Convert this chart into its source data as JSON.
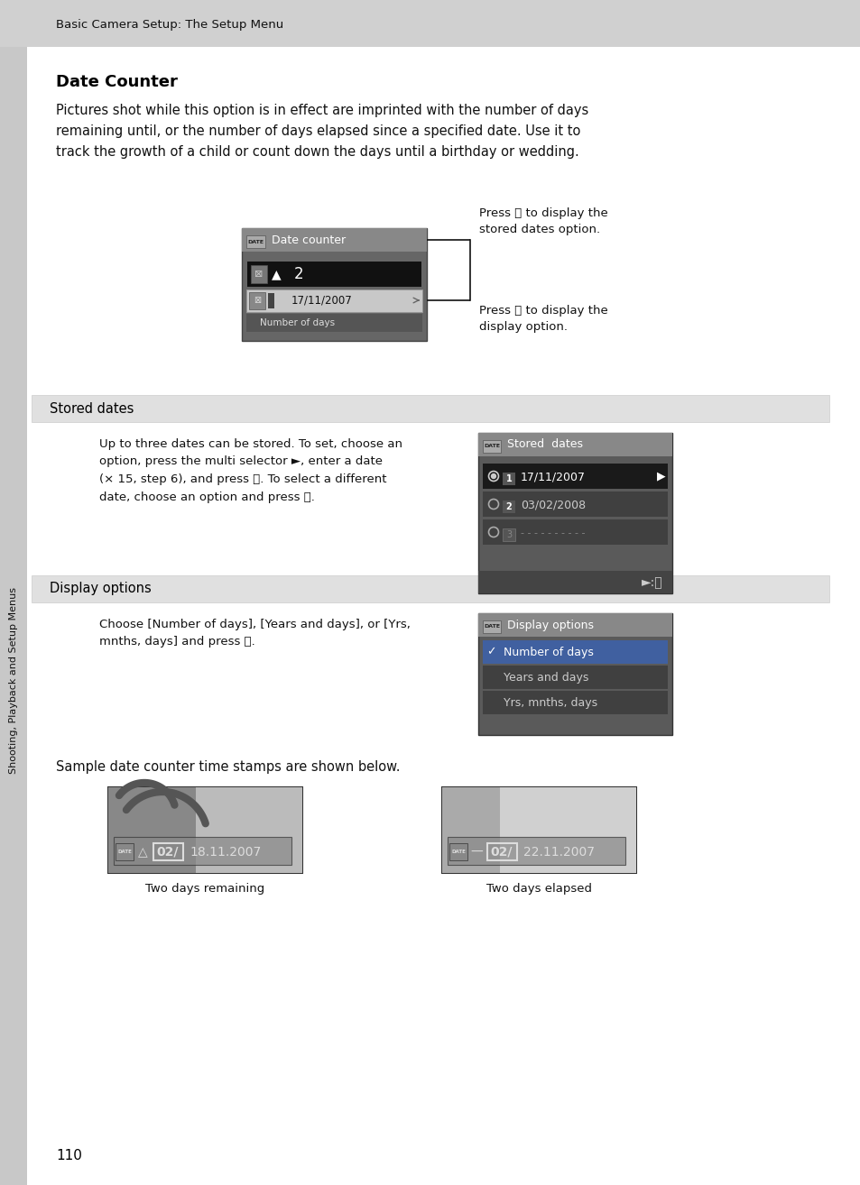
{
  "page_bg": "#ffffff",
  "header_bg": "#d0d0d0",
  "header_text": "Basic Camera Setup: The Setup Menu",
  "header_fontsize": 9.5,
  "title": "Date Counter",
  "title_fontsize": 13,
  "body_text1": "Pictures shot while this option is in effect are imprinted with the number of days\nremaining until, or the number of days elapsed since a specified date. Use it to\ntrack the growth of a child or count down the days until a birthday or wedding.",
  "body_fontsize": 10.5,
  "section1_header": "Stored dates",
  "section1_text": "Up to three dates can be stored. To set, choose an\noption, press the multi selector ►, enter a date\n(× 15, step 6), and press ⒪. To select a different\ndate, choose an option and press ⒪.",
  "section2_header": "Display options",
  "section2_text": "Choose [Number of days], [Years and days], or [Yrs,\nmnths, days] and press ⒪.",
  "sample_text": "Sample date counter time stamps are shown below.",
  "caption1": "Two days remaining",
  "caption2": "Two days elapsed",
  "footer_text": "110",
  "sidebar_text": "Shooting, Playback and Setup Menus",
  "callout_text1": "Press ⒪ to display the\nstored dates option.",
  "callout_text2": "Press ⒪ to display the\ndisplay option."
}
